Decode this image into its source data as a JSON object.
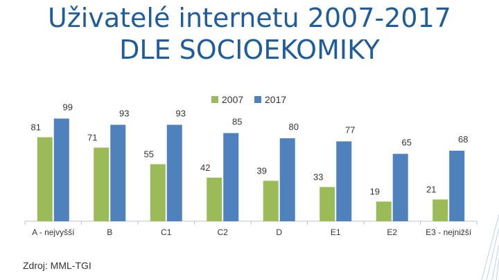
{
  "title_line1": "Uživatelé internetu 2007-2017",
  "title_line2": "DLE SOCIOEKOMIKY",
  "source": "Zdroj: MML-TGI",
  "colors": {
    "series_2007": "#9bbb59",
    "series_2017": "#4f81bd",
    "title": "#1f5c99"
  },
  "chart_data": {
    "type": "bar",
    "categories": [
      "A - nejvyšší",
      "B",
      "C1",
      "C2",
      "D",
      "E1",
      "E2",
      "E3 - nejnižší"
    ],
    "series": [
      {
        "name": "2007",
        "values": [
          81,
          71,
          55,
          42,
          39,
          33,
          19,
          21
        ]
      },
      {
        "name": "2017",
        "values": [
          99,
          93,
          93,
          85,
          80,
          77,
          65,
          68
        ]
      }
    ],
    "xlabel": "",
    "ylabel": "",
    "ylim": [
      0,
      100
    ],
    "grid": false,
    "legend": "top"
  }
}
